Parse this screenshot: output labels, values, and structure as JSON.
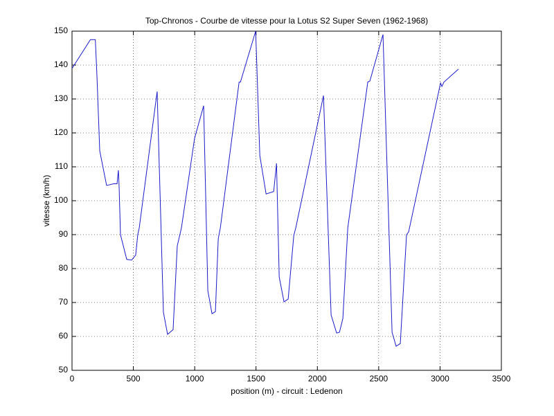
{
  "chart_data": {
    "type": "line",
    "title": "Top-Chronos - Courbe de vitesse pour la Lotus S2 Super Seven (1962-1968)",
    "x_label": "position (m) - circuit : Ledenon",
    "y_label": "vitesse (km/h)",
    "x": [
      0,
      150,
      190,
      203,
      226,
      282,
      339,
      367,
      378,
      384,
      395,
      446,
      486,
      519,
      536,
      548,
      694,
      745,
      779,
      824,
      858,
      892,
      999,
      1073,
      1107,
      1141,
      1169,
      1192,
      1209,
      1362,
      1373,
      1497,
      1531,
      1582,
      1644,
      1667,
      1689,
      1728,
      1762,
      1808,
      1824,
      2050,
      2112,
      2157,
      2180,
      2208,
      2248,
      2411,
      2428,
      2535,
      2609,
      2642,
      2676,
      2727,
      2744,
      3004,
      3015,
      3032,
      3150
    ],
    "values": [
      139,
      147.5,
      147.5,
      137,
      114.7,
      104.5,
      105,
      105,
      109,
      104,
      90,
      82.7,
      82.5,
      84,
      90,
      92,
      132.2,
      67.1,
      60.6,
      62,
      86.7,
      92,
      118.4,
      128,
      73.5,
      66.7,
      67.3,
      88.8,
      92,
      135,
      135,
      150,
      113.3,
      102,
      102.7,
      111,
      77.5,
      70.2,
      71,
      89.8,
      92,
      131,
      66.3,
      61,
      61.2,
      65.3,
      92,
      135,
      135.3,
      149,
      61.2,
      57.1,
      57.9,
      90,
      90.8,
      134.7,
      133.7,
      135,
      138.8
    ],
    "color": "#1a1ac8",
    "xlim": [
      0,
      3500
    ],
    "xticks": [
      0,
      500,
      1000,
      1500,
      2000,
      2500,
      3000,
      3500
    ],
    "ylim": [
      50,
      150
    ],
    "yticks": [
      50,
      60,
      70,
      80,
      90,
      100,
      110,
      120,
      130,
      140,
      150
    ],
    "grid": true
  }
}
